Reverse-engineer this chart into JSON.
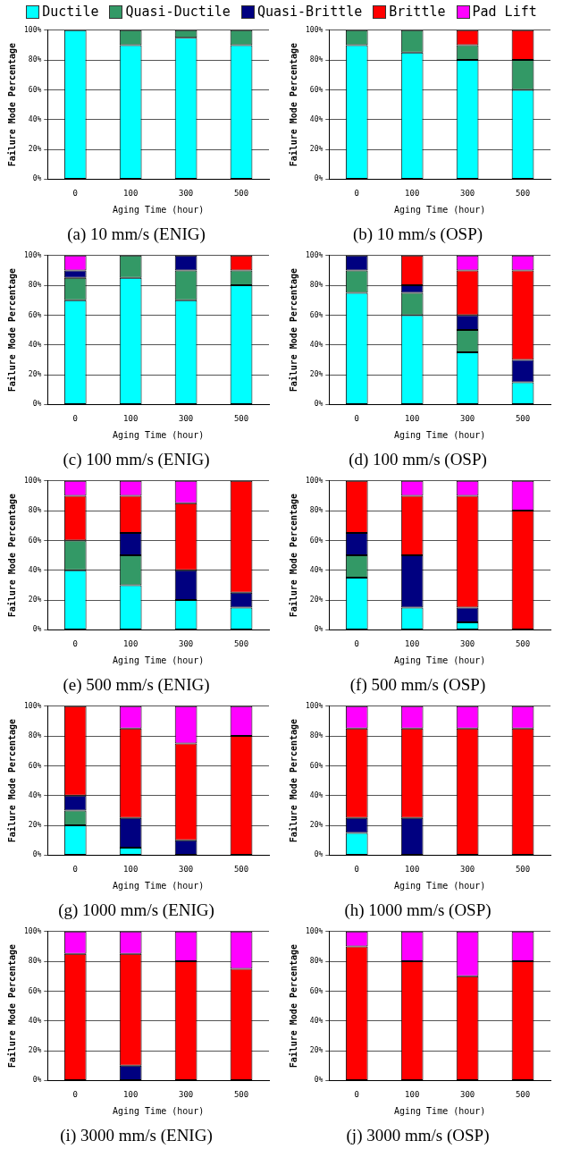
{
  "chart_data": [
    {
      "type": "bar",
      "stacked": true,
      "title": "(a) 10 mm/s (ENIG)",
      "xlabel": "Aging Time (hour)",
      "ylabel": "Failure Mode Percentage",
      "categories": [
        "0",
        "100",
        "300",
        "500"
      ],
      "ylim": [
        0,
        100
      ],
      "yticks": [
        {
          "value": 0,
          "label": "0%"
        },
        {
          "value": 20,
          "label": "20%"
        },
        {
          "value": 40,
          "label": "40%"
        },
        {
          "value": 60,
          "label": "60%"
        },
        {
          "value": 80,
          "label": "80%"
        },
        {
          "value": 100,
          "label": "100%"
        }
      ],
      "grid": "y",
      "legend": "top",
      "series": [
        {
          "name": "Ductile",
          "color": "#00ffff",
          "values": [
            100,
            90,
            95,
            90
          ]
        },
        {
          "name": "Quasi-Ductile",
          "color": "#339966",
          "values": [
            0,
            10,
            5,
            10
          ]
        },
        {
          "name": "Quasi-Brittle",
          "color": "#000080",
          "values": [
            0,
            0,
            0,
            0
          ]
        },
        {
          "name": "Brittle",
          "color": "#ff0000",
          "values": [
            0,
            0,
            0,
            0
          ]
        },
        {
          "name": "Pad Lift",
          "color": "#ff00ff",
          "values": [
            0,
            0,
            0,
            0
          ]
        }
      ]
    },
    {
      "type": "bar",
      "stacked": true,
      "title": "(b) 10 mm/s (OSP)",
      "xlabel": "Aging Time (hour)",
      "ylabel": "Failure Mode Percentage",
      "categories": [
        "0",
        "100",
        "300",
        "500"
      ],
      "ylim": [
        0,
        100
      ],
      "yticks": [
        {
          "value": 0,
          "label": "0%"
        },
        {
          "value": 20,
          "label": "20%"
        },
        {
          "value": 40,
          "label": "40%"
        },
        {
          "value": 60,
          "label": "60%"
        },
        {
          "value": 80,
          "label": "80%"
        },
        {
          "value": 100,
          "label": "100%"
        }
      ],
      "grid": "y",
      "series": [
        {
          "color": "#00ffff",
          "values": [
            90,
            85,
            80,
            60
          ]
        },
        {
          "color": "#339966",
          "values": [
            10,
            15,
            10,
            20
          ]
        },
        {
          "color": "#000080",
          "values": [
            0,
            0,
            0,
            0
          ]
        },
        {
          "color": "#ff0000",
          "values": [
            0,
            0,
            10,
            20
          ]
        },
        {
          "color": "#ff00ff",
          "values": [
            0,
            0,
            0,
            0
          ]
        }
      ]
    },
    {
      "type": "bar",
      "stacked": true,
      "title": "(c) 100 mm/s (ENIG)",
      "xlabel": "Aging Time (hour)",
      "ylabel": "Failure Mode Percentage",
      "categories": [
        "0",
        "100",
        "300",
        "500"
      ],
      "ylim": [
        0,
        100
      ],
      "yticks": [
        {
          "value": 0,
          "label": "0%"
        },
        {
          "value": 20,
          "label": "20%"
        },
        {
          "value": 40,
          "label": "40%"
        },
        {
          "value": 60,
          "label": "60%"
        },
        {
          "value": 80,
          "label": "80%"
        },
        {
          "value": 100,
          "label": "100%"
        }
      ],
      "grid": "y",
      "series": [
        {
          "color": "#00ffff",
          "values": [
            70,
            85,
            70,
            80
          ]
        },
        {
          "color": "#339966",
          "values": [
            15,
            15,
            20,
            10
          ]
        },
        {
          "color": "#000080",
          "values": [
            5,
            0,
            10,
            0
          ]
        },
        {
          "color": "#ff0000",
          "values": [
            0,
            0,
            0,
            10
          ]
        },
        {
          "color": "#ff00ff",
          "values": [
            10,
            0,
            0,
            0
          ]
        }
      ]
    },
    {
      "type": "bar",
      "stacked": true,
      "title": "(d) 100 mm/s (OSP)",
      "xlabel": "Aging Time (hour)",
      "ylabel": "Failure Mode Percentage",
      "categories": [
        "0",
        "100",
        "300",
        "500"
      ],
      "ylim": [
        0,
        100
      ],
      "yticks": [
        {
          "value": 0,
          "label": "0%"
        },
        {
          "value": 20,
          "label": "20%"
        },
        {
          "value": 40,
          "label": "40%"
        },
        {
          "value": 60,
          "label": "60%"
        },
        {
          "value": 80,
          "label": "80%"
        },
        {
          "value": 100,
          "label": "100%"
        }
      ],
      "grid": "y",
      "series": [
        {
          "color": "#00ffff",
          "values": [
            75,
            60,
            35,
            15
          ]
        },
        {
          "color": "#339966",
          "values": [
            15,
            15,
            15,
            0
          ]
        },
        {
          "color": "#000080",
          "values": [
            10,
            5,
            10,
            15
          ]
        },
        {
          "color": "#ff0000",
          "values": [
            0,
            20,
            30,
            60
          ]
        },
        {
          "color": "#ff00ff",
          "values": [
            0,
            0,
            10,
            10
          ]
        }
      ]
    },
    {
      "type": "bar",
      "stacked": true,
      "title": "(e) 500 mm/s (ENIG)",
      "xlabel": "Aging Time (hour)",
      "ylabel": "Failure Mode Percentage",
      "categories": [
        "0",
        "100",
        "300",
        "500"
      ],
      "ylim": [
        0,
        100
      ],
      "yticks": [
        {
          "value": 0,
          "label": "0%"
        },
        {
          "value": 20,
          "label": "20%"
        },
        {
          "value": 40,
          "label": "40%"
        },
        {
          "value": 60,
          "label": "60%"
        },
        {
          "value": 80,
          "label": "80%"
        },
        {
          "value": 100,
          "label": "100%"
        }
      ],
      "grid": "y",
      "series": [
        {
          "color": "#00ffff",
          "values": [
            40,
            30,
            20,
            15
          ]
        },
        {
          "color": "#339966",
          "values": [
            20,
            20,
            0,
            0
          ]
        },
        {
          "color": "#000080",
          "values": [
            0,
            15,
            20,
            10
          ]
        },
        {
          "color": "#ff0000",
          "values": [
            30,
            25,
            45,
            75
          ]
        },
        {
          "color": "#ff00ff",
          "values": [
            10,
            10,
            15,
            0
          ]
        }
      ]
    },
    {
      "type": "bar",
      "stacked": true,
      "title": "(f) 500 mm/s (OSP)",
      "xlabel": "Aging Time (hour)",
      "ylabel": "Failure Mode Percentage",
      "categories": [
        "0",
        "100",
        "300",
        "500"
      ],
      "ylim": [
        0,
        100
      ],
      "yticks": [
        {
          "value": 0,
          "label": "0%"
        },
        {
          "value": 20,
          "label": "20%"
        },
        {
          "value": 40,
          "label": "40%"
        },
        {
          "value": 60,
          "label": "60%"
        },
        {
          "value": 80,
          "label": "80%"
        },
        {
          "value": 100,
          "label": "100%"
        }
      ],
      "grid": "y",
      "series": [
        {
          "color": "#00ffff",
          "values": [
            35,
            15,
            5,
            0
          ]
        },
        {
          "color": "#339966",
          "values": [
            15,
            0,
            0,
            0
          ]
        },
        {
          "color": "#000080",
          "values": [
            15,
            35,
            10,
            0
          ]
        },
        {
          "color": "#ff0000",
          "values": [
            35,
            40,
            75,
            80
          ]
        },
        {
          "color": "#ff00ff",
          "values": [
            0,
            10,
            10,
            20
          ]
        }
      ]
    },
    {
      "type": "bar",
      "stacked": true,
      "title": "(g) 1000 mm/s (ENIG)",
      "xlabel": "Aging Time (hour)",
      "ylabel": "Failure Mode Percentage",
      "categories": [
        "0",
        "100",
        "300",
        "500"
      ],
      "ylim": [
        0,
        100
      ],
      "yticks": [
        {
          "value": 0,
          "label": "0%"
        },
        {
          "value": 20,
          "label": "20%"
        },
        {
          "value": 40,
          "label": "40%"
        },
        {
          "value": 60,
          "label": "60%"
        },
        {
          "value": 80,
          "label": "80%"
        },
        {
          "value": 100,
          "label": "100%"
        }
      ],
      "grid": "y",
      "series": [
        {
          "color": "#00ffff",
          "values": [
            20,
            5,
            0,
            0
          ]
        },
        {
          "color": "#339966",
          "values": [
            10,
            0,
            0,
            0
          ]
        },
        {
          "color": "#000080",
          "values": [
            10,
            20,
            10,
            0
          ]
        },
        {
          "color": "#ff0000",
          "values": [
            60,
            60,
            65,
            80
          ]
        },
        {
          "color": "#ff00ff",
          "values": [
            0,
            15,
            25,
            20
          ]
        }
      ]
    },
    {
      "type": "bar",
      "stacked": true,
      "title": "(h) 1000 mm/s (OSP)",
      "xlabel": "Aging Time (hour)",
      "ylabel": "Failure Mode Percentage",
      "categories": [
        "0",
        "100",
        "300",
        "500"
      ],
      "ylim": [
        0,
        100
      ],
      "yticks": [
        {
          "value": 0,
          "label": "0%"
        },
        {
          "value": 20,
          "label": "20%"
        },
        {
          "value": 40,
          "label": "40%"
        },
        {
          "value": 60,
          "label": "60%"
        },
        {
          "value": 80,
          "label": "80%"
        },
        {
          "value": 100,
          "label": "100%"
        }
      ],
      "grid": "y",
      "series": [
        {
          "color": "#00ffff",
          "values": [
            15,
            0,
            0,
            0
          ]
        },
        {
          "color": "#339966",
          "values": [
            0,
            0,
            0,
            0
          ]
        },
        {
          "color": "#000080",
          "values": [
            10,
            25,
            0,
            0
          ]
        },
        {
          "color": "#ff0000",
          "values": [
            60,
            60,
            85,
            85
          ]
        },
        {
          "color": "#ff00ff",
          "values": [
            15,
            15,
            15,
            15
          ]
        }
      ]
    },
    {
      "type": "bar",
      "stacked": true,
      "title": "(i) 3000 mm/s (ENIG)",
      "xlabel": "Aging Time (hour)",
      "ylabel": "Failure Mode Percentage",
      "categories": [
        "0",
        "100",
        "300",
        "500"
      ],
      "ylim": [
        0,
        100
      ],
      "yticks": [
        {
          "value": 0,
          "label": "0%"
        },
        {
          "value": 20,
          "label": "20%"
        },
        {
          "value": 40,
          "label": "40%"
        },
        {
          "value": 60,
          "label": "60%"
        },
        {
          "value": 80,
          "label": "80%"
        },
        {
          "value": 100,
          "label": "100%"
        }
      ],
      "grid": "y",
      "series": [
        {
          "color": "#00ffff",
          "values": [
            0,
            0,
            0,
            0
          ]
        },
        {
          "color": "#339966",
          "values": [
            0,
            0,
            0,
            0
          ]
        },
        {
          "color": "#000080",
          "values": [
            0,
            10,
            0,
            0
          ]
        },
        {
          "color": "#ff0000",
          "values": [
            85,
            75,
            80,
            75
          ]
        },
        {
          "color": "#ff00ff",
          "values": [
            15,
            15,
            20,
            25
          ]
        }
      ]
    },
    {
      "type": "bar",
      "stacked": true,
      "title": "(j) 3000 mm/s (OSP)",
      "xlabel": "Aging Time (hour)",
      "ylabel": "Failure Mode Percentage",
      "categories": [
        "0",
        "100",
        "300",
        "500"
      ],
      "ylim": [
        0,
        100
      ],
      "yticks": [
        {
          "value": 0,
          "label": "0%"
        },
        {
          "value": 20,
          "label": "20%"
        },
        {
          "value": 40,
          "label": "40%"
        },
        {
          "value": 60,
          "label": "60%"
        },
        {
          "value": 80,
          "label": "80%"
        },
        {
          "value": 100,
          "label": "100%"
        }
      ],
      "grid": "y",
      "series": [
        {
          "color": "#00ffff",
          "values": [
            0,
            0,
            0,
            0
          ]
        },
        {
          "color": "#339966",
          "values": [
            0,
            0,
            0,
            0
          ]
        },
        {
          "color": "#000080",
          "values": [
            0,
            0,
            0,
            0
          ]
        },
        {
          "color": "#ff0000",
          "values": [
            90,
            80,
            70,
            80
          ]
        },
        {
          "color": "#ff00ff",
          "values": [
            10,
            20,
            30,
            20
          ]
        }
      ]
    }
  ]
}
